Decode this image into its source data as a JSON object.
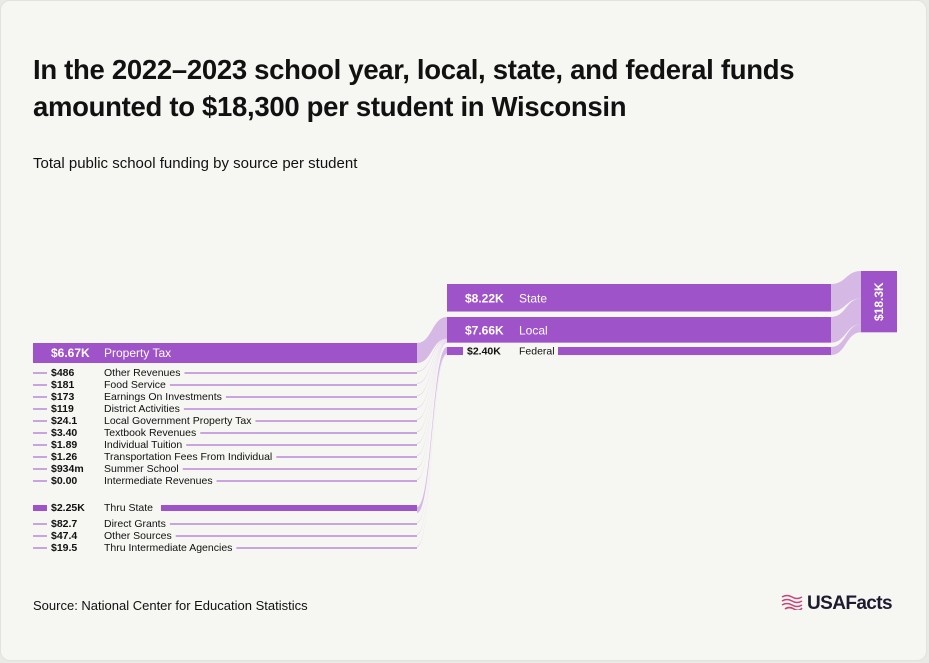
{
  "title": "In the 2022–2023 school year, local, state, and federal funds amounted to $18,300 per student in Wisconsin",
  "subtitle": "Total public school funding by source per student",
  "source": "Source: National Center for Education Statistics",
  "logo": {
    "text": "USAFacts",
    "icon": "flag-icon"
  },
  "colors": {
    "primary": "#9f53c9",
    "light": "#d2b3e2",
    "faint": "#e7d6ef",
    "text": "#111111"
  },
  "chart_data": {
    "type": "sankey",
    "total": {
      "label": "$18.3K",
      "value": 18300
    },
    "sources": [
      {
        "key": "state",
        "value_label": "$8.22K",
        "name": "State",
        "value": 8220
      },
      {
        "key": "local",
        "value_label": "$7.66K",
        "name": "Local",
        "value": 7660
      },
      {
        "key": "federal",
        "value_label": "$2.40K",
        "name": "Federal",
        "value": 2400
      }
    ],
    "local_breakdown": [
      {
        "value_label": "$6.67K",
        "name": "Property Tax",
        "value": 6670,
        "major": true
      },
      {
        "value_label": "$486",
        "name": "Other Revenues",
        "value": 486
      },
      {
        "value_label": "$181",
        "name": "Food Service",
        "value": 181
      },
      {
        "value_label": "$173",
        "name": "Earnings On Investments",
        "value": 173
      },
      {
        "value_label": "$119",
        "name": "District Activities",
        "value": 119
      },
      {
        "value_label": "$24.1",
        "name": "Local Government Property Tax",
        "value": 24.1
      },
      {
        "value_label": "$3.40",
        "name": "Textbook Revenues",
        "value": 3.4
      },
      {
        "value_label": "$1.89",
        "name": "Individual Tuition",
        "value": 1.89
      },
      {
        "value_label": "$1.26",
        "name": "Transportation Fees From Individual",
        "value": 1.26
      },
      {
        "value_label": "$934m",
        "name": "Summer School",
        "value": 0.934
      },
      {
        "value_label": "$0.00",
        "name": "Intermediate Revenues",
        "value": 0
      }
    ],
    "federal_breakdown": [
      {
        "value_label": "$2.25K",
        "name": "Thru State",
        "value": 2250,
        "major": true
      },
      {
        "value_label": "$82.7",
        "name": "Direct Grants",
        "value": 82.7
      },
      {
        "value_label": "$47.4",
        "name": "Other Sources",
        "value": 47.4
      },
      {
        "value_label": "$19.5",
        "name": "Thru Intermediate Agencies",
        "value": 19.5
      }
    ]
  }
}
